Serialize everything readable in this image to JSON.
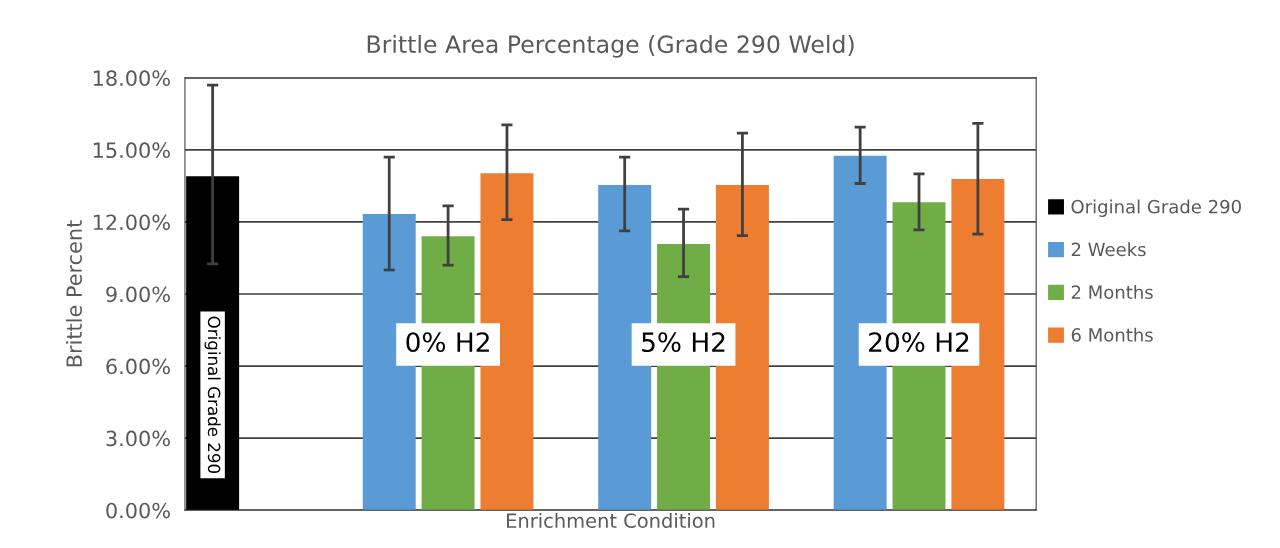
{
  "chart_data": {
    "type": "bar",
    "title": "Brittle Area Percentage (Grade 290 Weld)",
    "xlabel": "Enrichment Condition",
    "ylabel": "Brittle Percent",
    "categories": [
      "Original Grade 290",
      "0% H2",
      "5% H2",
      "20% H2"
    ],
    "series": [
      {
        "name": "Original Grade 290",
        "color": "#000000",
        "values": [
          13.9,
          null,
          null,
          null
        ],
        "errors": [
          [
            10.25,
            17.7
          ],
          null,
          null,
          null
        ]
      },
      {
        "name": "2 Weeks",
        "color": "#5b9bd5",
        "values": [
          null,
          12.33,
          13.54,
          14.76
        ],
        "errors": [
          null,
          [
            10.0,
            14.7
          ],
          [
            11.63,
            14.7
          ],
          [
            13.6,
            15.95
          ]
        ]
      },
      {
        "name": "2 Months",
        "color": "#70ad47",
        "values": [
          null,
          11.4,
          11.08,
          12.82
        ],
        "errors": [
          null,
          [
            10.2,
            12.67
          ],
          [
            9.72,
            12.53
          ],
          [
            11.67,
            14.0
          ]
        ]
      },
      {
        "name": "6 Months",
        "color": "#ed7d31",
        "values": [
          null,
          14.03,
          13.54,
          13.79
        ],
        "errors": [
          null,
          [
            12.1,
            16.04
          ],
          [
            11.43,
            15.7
          ],
          [
            11.49,
            16.1
          ]
        ]
      }
    ],
    "ylim": [
      0,
      18
    ],
    "yticks": [
      {
        "value": 0,
        "label": "0.00%"
      },
      {
        "value": 3,
        "label": "3.00%"
      },
      {
        "value": 6,
        "label": "6.00%"
      },
      {
        "value": 9,
        "label": "9.00%"
      },
      {
        "value": 12,
        "label": "12.00%"
      },
      {
        "value": 15,
        "label": "15.00%"
      },
      {
        "value": 18,
        "label": "18.00%"
      }
    ],
    "grid": "y",
    "legend": "right"
  }
}
